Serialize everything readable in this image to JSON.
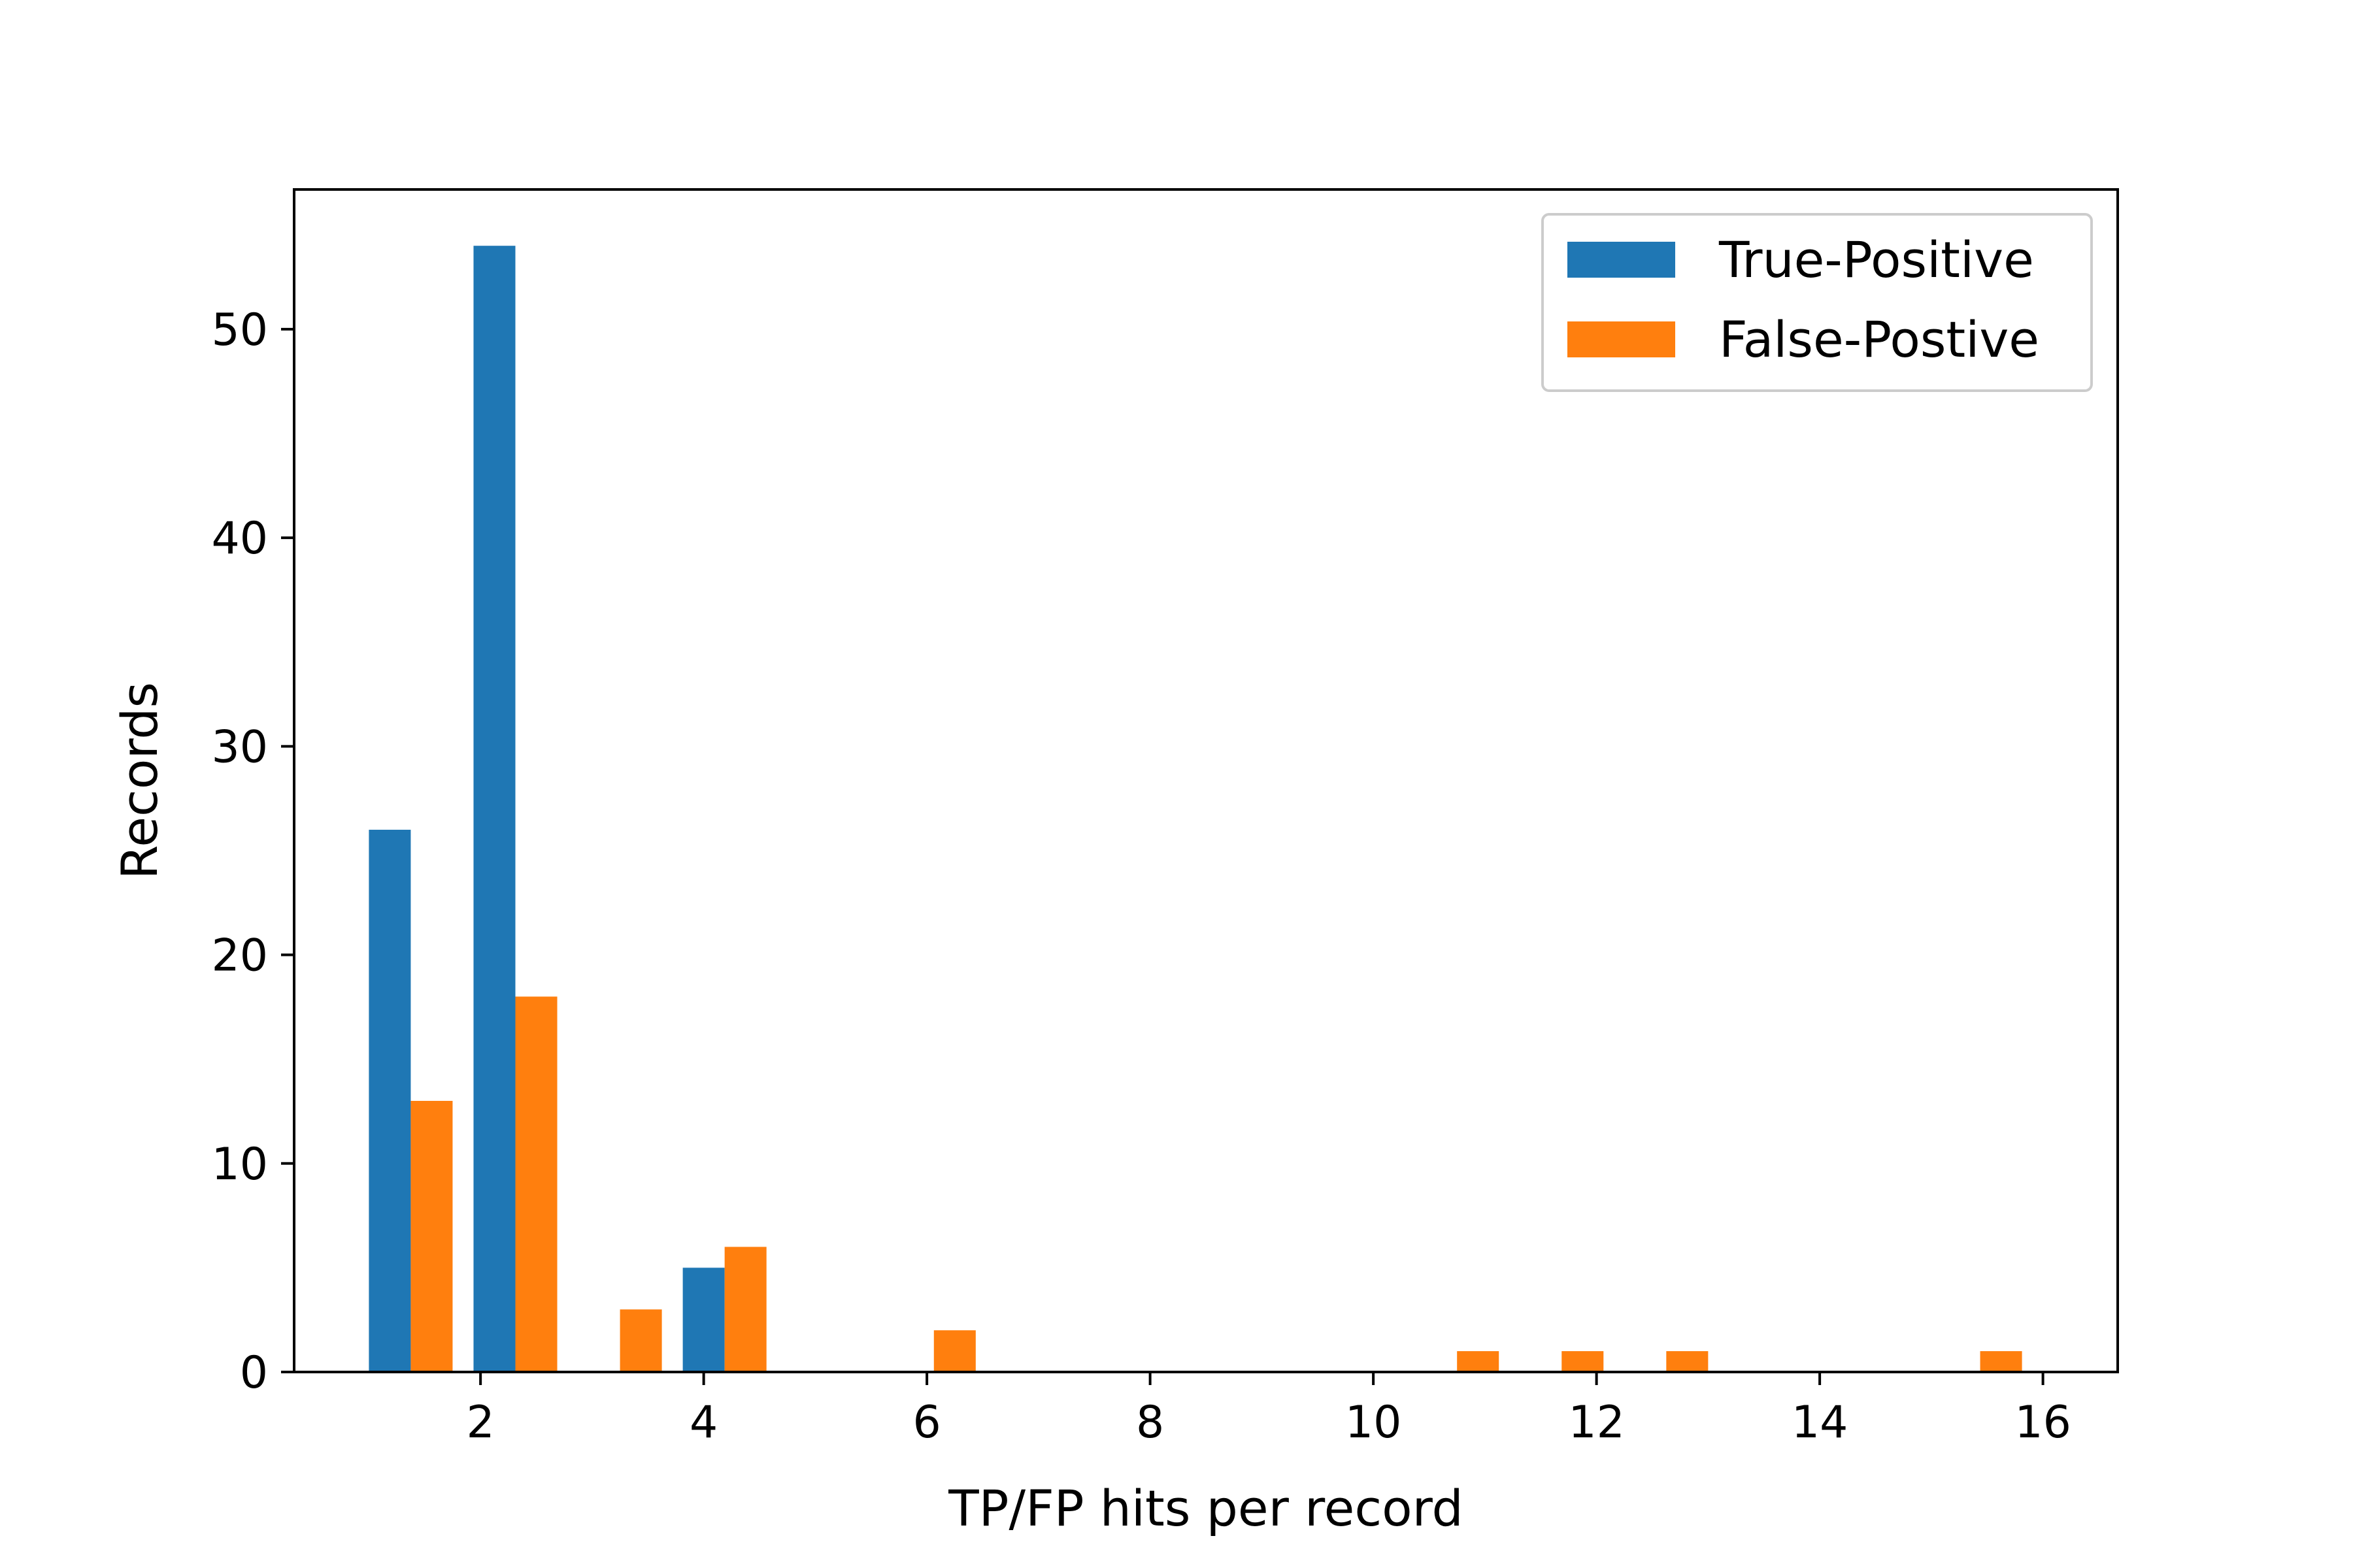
{
  "chart_data": {
    "type": "bar",
    "xlabel": "TP/FP hits per record",
    "ylabel": "Records",
    "xlim": [
      0.33,
      16.67
    ],
    "ylim": [
      0,
      56.7
    ],
    "xticks": [
      2,
      4,
      6,
      8,
      10,
      12,
      14,
      16
    ],
    "yticks": [
      0,
      10,
      20,
      30,
      40,
      50
    ],
    "bar_width": 0.375,
    "grid": false,
    "legend_position": "top-right",
    "series": [
      {
        "name": "True-Positive",
        "color": "#1f77b4",
        "points": [
          {
            "x": 1.0,
            "y": 26
          },
          {
            "x": 1.9375,
            "y": 54
          },
          {
            "x": 3.8125,
            "y": 5
          }
        ]
      },
      {
        "name": "False-Postive",
        "color": "#ff7f0e",
        "points": [
          {
            "x": 1.375,
            "y": 13
          },
          {
            "x": 2.3125,
            "y": 18
          },
          {
            "x": 3.25,
            "y": 3
          },
          {
            "x": 4.1875,
            "y": 6
          },
          {
            "x": 6.0625,
            "y": 2
          },
          {
            "x": 10.75,
            "y": 1
          },
          {
            "x": 11.6875,
            "y": 1
          },
          {
            "x": 12.625,
            "y": 1
          },
          {
            "x": 15.4375,
            "y": 1
          }
        ]
      }
    ]
  }
}
